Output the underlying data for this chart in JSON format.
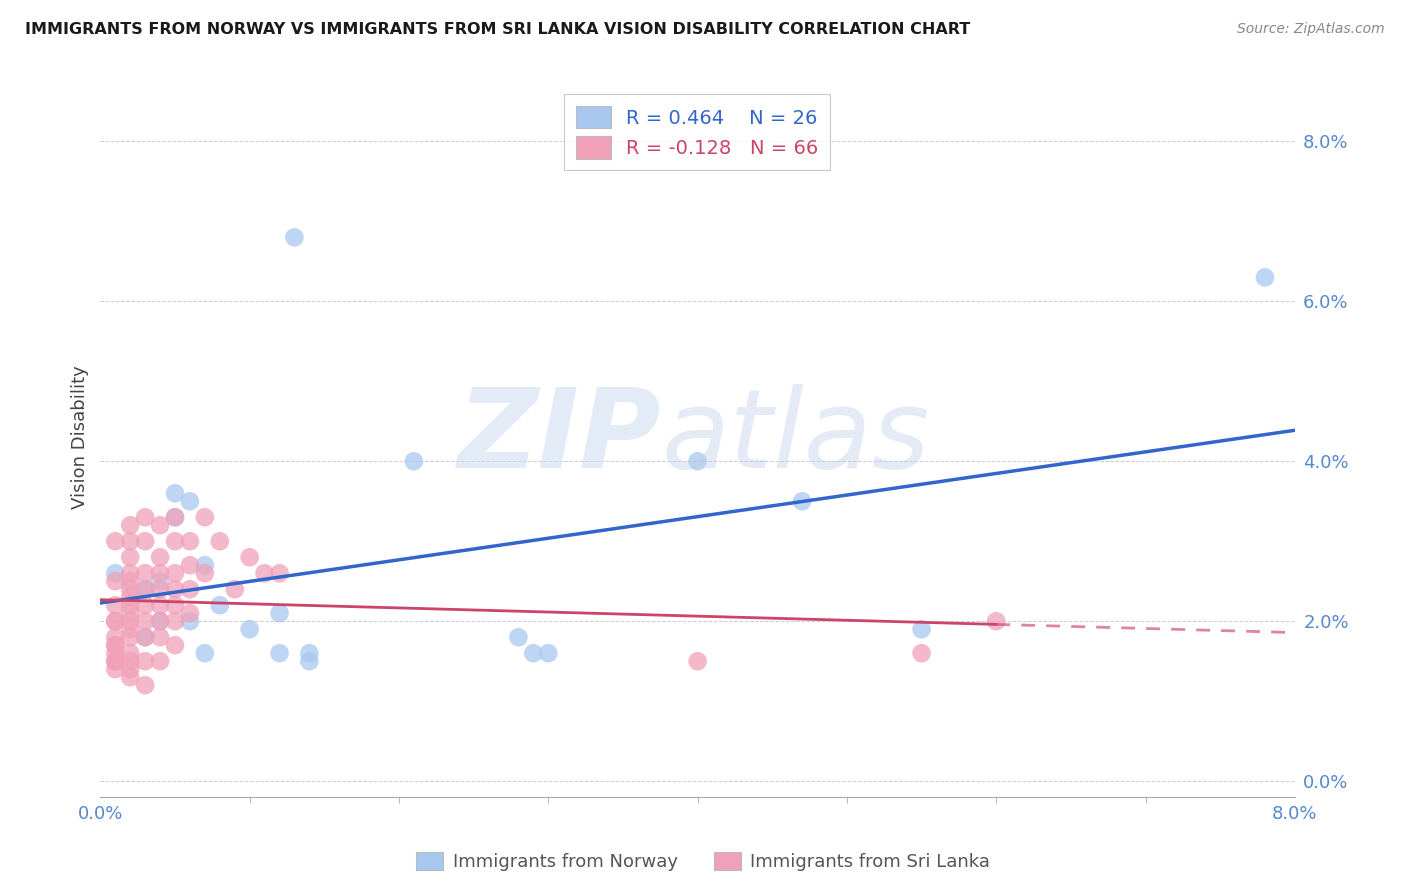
{
  "title": "IMMIGRANTS FROM NORWAY VS IMMIGRANTS FROM SRI LANKA VISION DISABILITY CORRELATION CHART",
  "source": "Source: ZipAtlas.com",
  "ylabel": "Vision Disability",
  "norway_R": 0.464,
  "norway_N": 26,
  "srilanka_R": -0.128,
  "srilanka_N": 66,
  "norway_color": "#a8c8f0",
  "srilanka_color": "#f0a0b8",
  "norway_line_color": "#3366cc",
  "srilanka_line_color": "#cc4466",
  "xlim": [
    0.0,
    0.08
  ],
  "ylim": [
    -0.002,
    0.088
  ],
  "yticks": [
    0.0,
    0.02,
    0.04,
    0.06,
    0.08
  ],
  "norway_points": [
    [
      0.001,
      0.026
    ],
    [
      0.003,
      0.024
    ],
    [
      0.003,
      0.018
    ],
    [
      0.004,
      0.025
    ],
    [
      0.004,
      0.02
    ],
    [
      0.005,
      0.033
    ],
    [
      0.005,
      0.036
    ],
    [
      0.006,
      0.035
    ],
    [
      0.006,
      0.02
    ],
    [
      0.007,
      0.027
    ],
    [
      0.007,
      0.016
    ],
    [
      0.008,
      0.022
    ],
    [
      0.01,
      0.019
    ],
    [
      0.012,
      0.021
    ],
    [
      0.012,
      0.016
    ],
    [
      0.013,
      0.068
    ],
    [
      0.014,
      0.015
    ],
    [
      0.014,
      0.016
    ],
    [
      0.021,
      0.04
    ],
    [
      0.028,
      0.018
    ],
    [
      0.029,
      0.016
    ],
    [
      0.03,
      0.016
    ],
    [
      0.04,
      0.04
    ],
    [
      0.047,
      0.035
    ],
    [
      0.055,
      0.019
    ],
    [
      0.078,
      0.063
    ]
  ],
  "srilanka_points": [
    [
      0.001,
      0.03
    ],
    [
      0.001,
      0.025
    ],
    [
      0.001,
      0.022
    ],
    [
      0.001,
      0.02
    ],
    [
      0.001,
      0.02
    ],
    [
      0.001,
      0.018
    ],
    [
      0.001,
      0.017
    ],
    [
      0.001,
      0.017
    ],
    [
      0.001,
      0.016
    ],
    [
      0.001,
      0.015
    ],
    [
      0.001,
      0.015
    ],
    [
      0.001,
      0.014
    ],
    [
      0.002,
      0.032
    ],
    [
      0.002,
      0.03
    ],
    [
      0.002,
      0.028
    ],
    [
      0.002,
      0.026
    ],
    [
      0.002,
      0.025
    ],
    [
      0.002,
      0.024
    ],
    [
      0.002,
      0.023
    ],
    [
      0.002,
      0.022
    ],
    [
      0.002,
      0.021
    ],
    [
      0.002,
      0.02
    ],
    [
      0.002,
      0.019
    ],
    [
      0.002,
      0.018
    ],
    [
      0.002,
      0.016
    ],
    [
      0.002,
      0.015
    ],
    [
      0.002,
      0.014
    ],
    [
      0.002,
      0.013
    ],
    [
      0.003,
      0.033
    ],
    [
      0.003,
      0.03
    ],
    [
      0.003,
      0.026
    ],
    [
      0.003,
      0.024
    ],
    [
      0.003,
      0.022
    ],
    [
      0.003,
      0.02
    ],
    [
      0.003,
      0.018
    ],
    [
      0.003,
      0.015
    ],
    [
      0.003,
      0.012
    ],
    [
      0.004,
      0.032
    ],
    [
      0.004,
      0.028
    ],
    [
      0.004,
      0.026
    ],
    [
      0.004,
      0.024
    ],
    [
      0.004,
      0.022
    ],
    [
      0.004,
      0.02
    ],
    [
      0.004,
      0.018
    ],
    [
      0.004,
      0.015
    ],
    [
      0.005,
      0.033
    ],
    [
      0.005,
      0.03
    ],
    [
      0.005,
      0.026
    ],
    [
      0.005,
      0.024
    ],
    [
      0.005,
      0.022
    ],
    [
      0.005,
      0.02
    ],
    [
      0.005,
      0.017
    ],
    [
      0.006,
      0.03
    ],
    [
      0.006,
      0.027
    ],
    [
      0.006,
      0.024
    ],
    [
      0.006,
      0.021
    ],
    [
      0.007,
      0.033
    ],
    [
      0.007,
      0.026
    ],
    [
      0.008,
      0.03
    ],
    [
      0.009,
      0.024
    ],
    [
      0.01,
      0.028
    ],
    [
      0.011,
      0.026
    ],
    [
      0.012,
      0.026
    ],
    [
      0.04,
      0.015
    ],
    [
      0.055,
      0.016
    ],
    [
      0.06,
      0.02
    ]
  ]
}
